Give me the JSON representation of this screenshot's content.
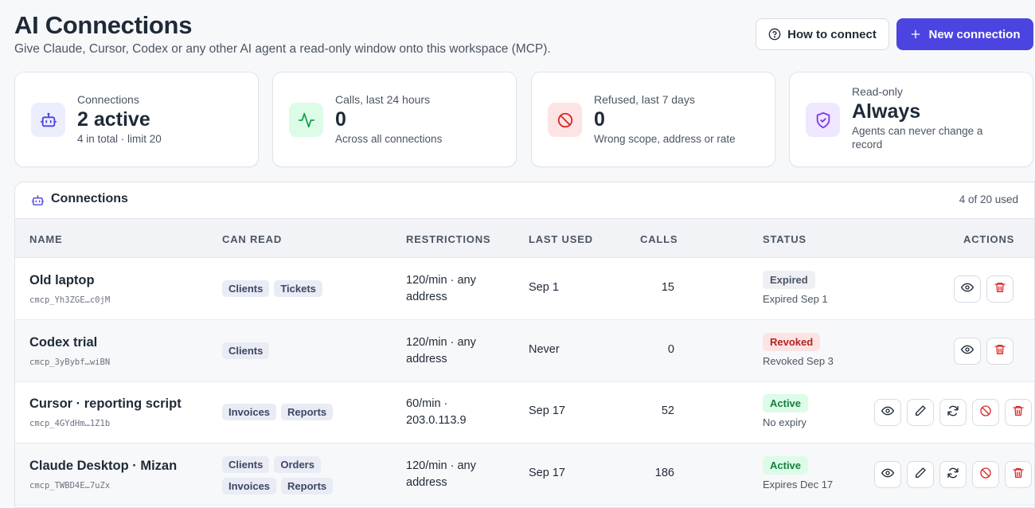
{
  "header": {
    "title": "AI Connections",
    "subtitle": "Give Claude, Cursor, Codex or any other AI agent a read-only window onto this workspace (MCP).",
    "how_to_connect_label": "How to connect",
    "new_connection_label": "New connection"
  },
  "stats": [
    {
      "label": "Connections",
      "value": "2 active",
      "sub": "4 in total · limit 20",
      "icon": "robot-icon",
      "color": "#4b44e0",
      "bg": "#eceefe"
    },
    {
      "label": "Calls, last 24 hours",
      "value": "0",
      "sub": "Across all connections",
      "icon": "activity-icon",
      "color": "#16a34a",
      "bg": "#dcfce7"
    },
    {
      "label": "Refused, last 7 days",
      "value": "0",
      "sub": "Wrong scope, address or rate",
      "icon": "ban-icon",
      "color": "#dc2626",
      "bg": "#fde4e4"
    },
    {
      "label": "Read-only",
      "value": "Always",
      "sub": "Agents can never change a record",
      "icon": "shield-check-icon",
      "color": "#7c3aed",
      "bg": "#efe7fd"
    }
  ],
  "connections_panel": {
    "title": "Connections",
    "count": "4 of 20 used",
    "columns": [
      "NAME",
      "CAN READ",
      "RESTRICTIONS",
      "LAST USED",
      "CALLS",
      "STATUS",
      "ACTIONS"
    ],
    "rows": [
      {
        "name": "Old laptop",
        "key": "cmcp_Yh3ZGE…c0jM",
        "scopes": [
          "Clients",
          "Tickets"
        ],
        "restrictions": "120/min · any address",
        "last_used": "Sep 1",
        "calls": "15",
        "status": "Expired",
        "status_kind": "expired",
        "status_sub": "Expired Sep 1",
        "actions": [
          "view",
          "delete"
        ]
      },
      {
        "name": "Codex trial",
        "key": "cmcp_3yBybf…wiBN",
        "scopes": [
          "Clients"
        ],
        "restrictions": "120/min · any address",
        "last_used": "Never",
        "calls": "0",
        "status": "Revoked",
        "status_kind": "revoked",
        "status_sub": "Revoked Sep 3",
        "actions": [
          "view",
          "delete"
        ]
      },
      {
        "name": "Cursor · reporting script",
        "key": "cmcp_4GYdHm…1Z1b",
        "scopes": [
          "Invoices",
          "Reports"
        ],
        "restrictions": "60/min · 203.0.113.9",
        "last_used": "Sep 17",
        "calls": "52",
        "status": "Active",
        "status_kind": "active",
        "status_sub": "No expiry",
        "actions": [
          "view",
          "edit",
          "rotate",
          "revoke",
          "delete"
        ]
      },
      {
        "name": "Claude Desktop · Mizan",
        "key": "cmcp_TWBD4E…7uZx",
        "scopes": [
          "Clients",
          "Orders",
          "Invoices",
          "Reports"
        ],
        "restrictions": "120/min · any address",
        "last_used": "Sep 17",
        "calls": "186",
        "status": "Active",
        "status_kind": "active",
        "status_sub": "Expires Dec 17",
        "actions": [
          "view",
          "edit",
          "rotate",
          "revoke",
          "delete"
        ]
      }
    ]
  }
}
